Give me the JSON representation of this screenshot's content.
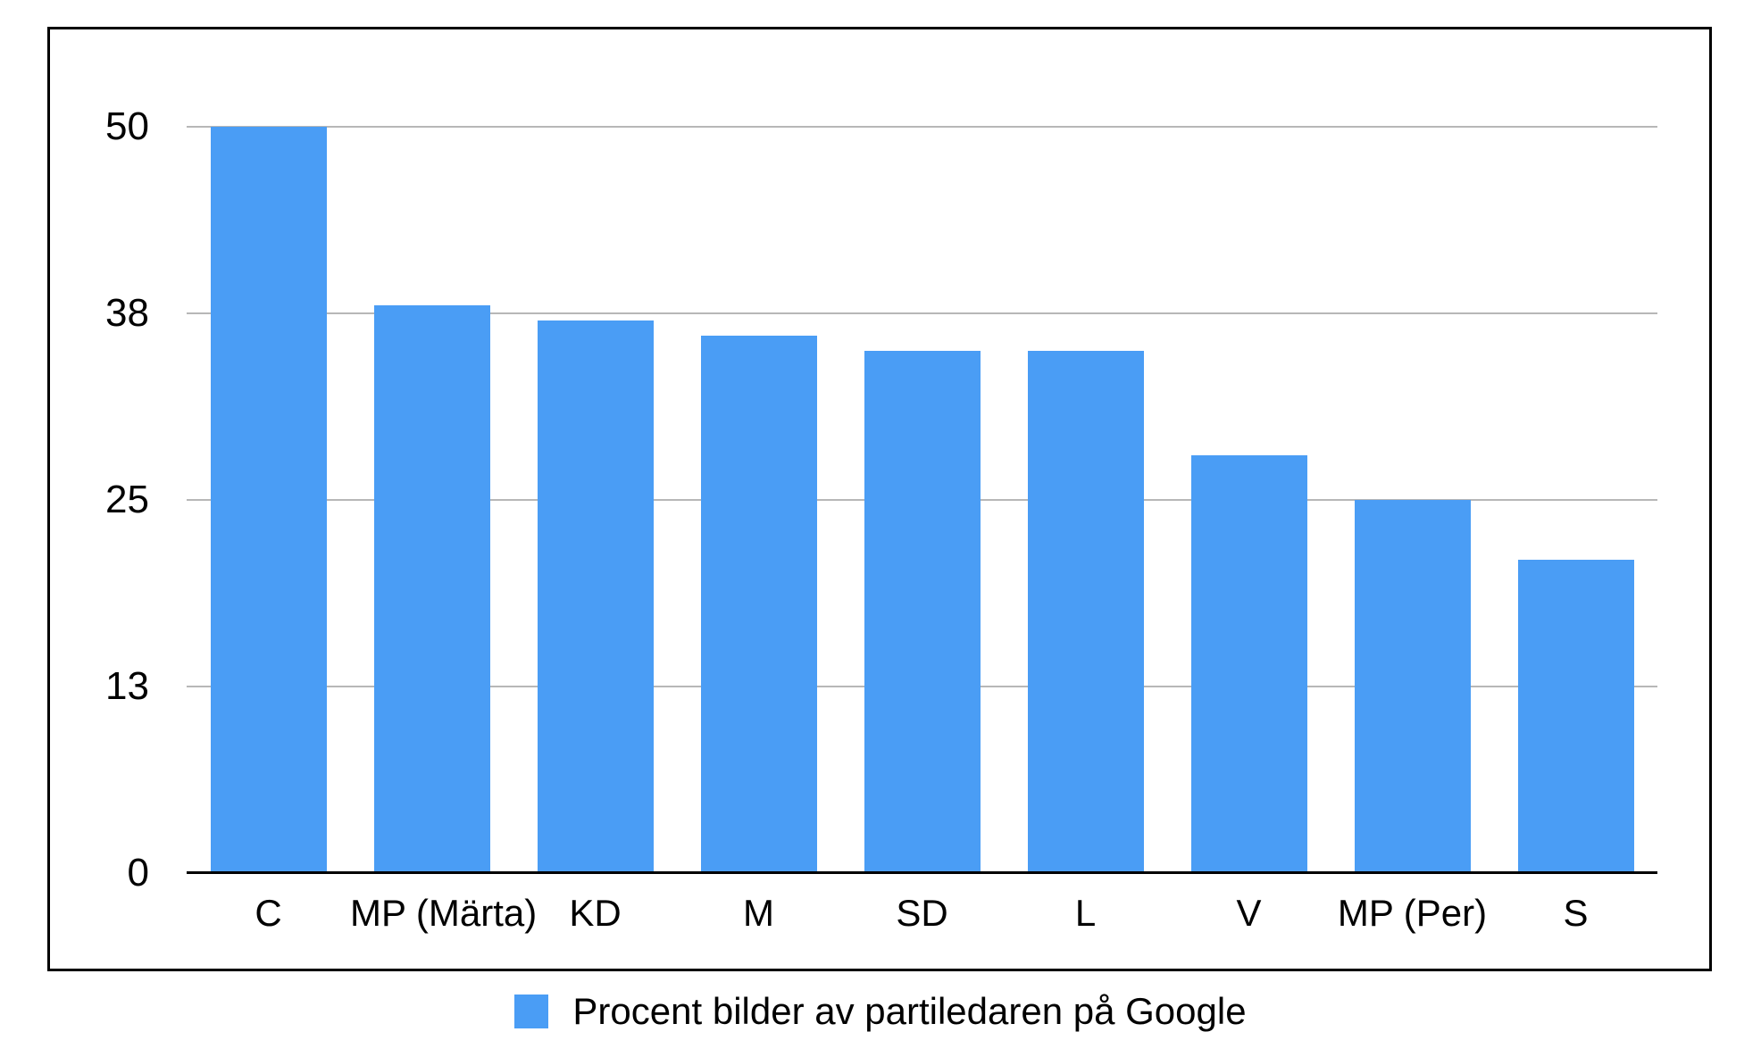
{
  "chart_data": {
    "type": "bar",
    "title": "",
    "categories": [
      "C",
      "MP (Märta)",
      "KD",
      "M",
      "SD",
      "L",
      "V",
      "MP (Per)",
      "S"
    ],
    "values": [
      50,
      38,
      37,
      36,
      35,
      35,
      28,
      25,
      21
    ],
    "series_name": "Procent bilder av partiledaren på Google",
    "xlabel": "",
    "ylabel": "",
    "ylim": [
      0,
      56.5
    ],
    "yticks": [
      {
        "value": 0,
        "label": "0"
      },
      {
        "value": 12.5,
        "label": "13"
      },
      {
        "value": 25,
        "label": "25"
      },
      {
        "value": 37.5,
        "label": "38"
      },
      {
        "value": 50,
        "label": "50"
      }
    ],
    "grid": true,
    "legend_position": "bottom",
    "colors": {
      "bar": "#4A9DF5",
      "gridline": "#b7b7b7",
      "axis": "#000000",
      "frame_border": "#000000",
      "background": "#ffffff",
      "text": "#000000"
    }
  }
}
